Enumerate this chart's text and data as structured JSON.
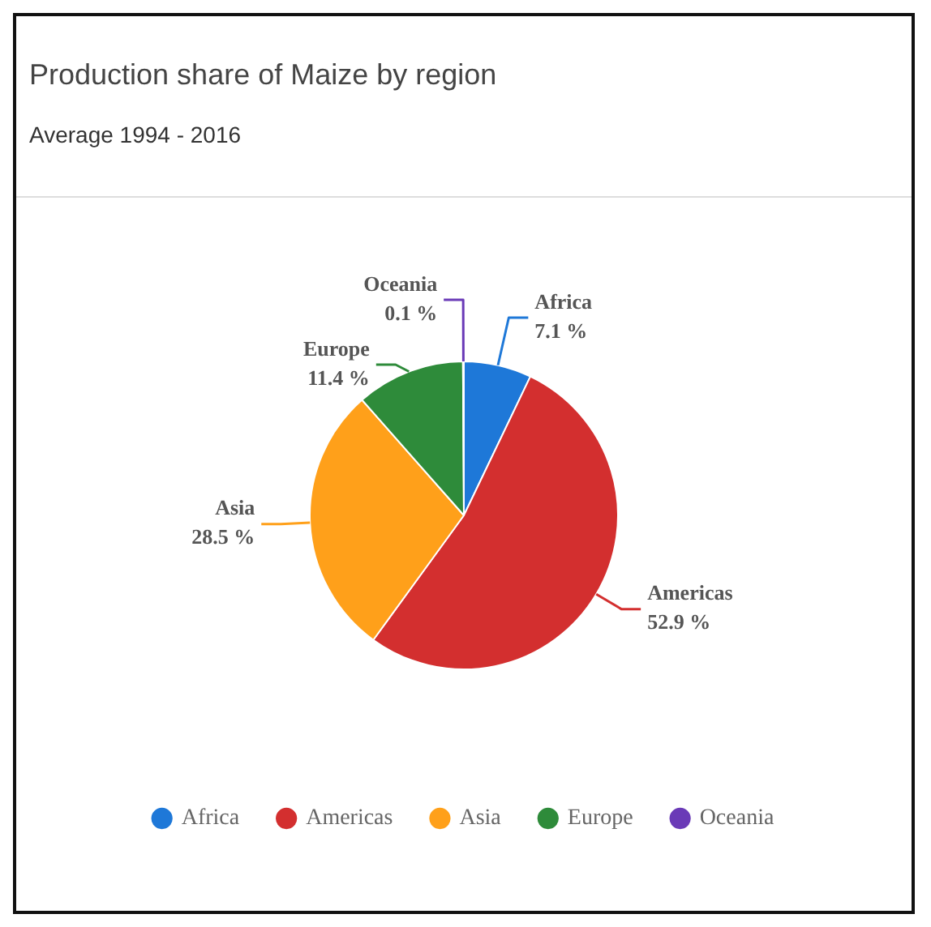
{
  "chart_data": {
    "type": "pie",
    "title": "Production share of Maize by region",
    "subtitle": "Average 1994 - 2016",
    "categories": [
      "Africa",
      "Americas",
      "Asia",
      "Europe",
      "Oceania"
    ],
    "values": [
      7.1,
      52.9,
      28.5,
      11.4,
      0.1
    ],
    "value_labels": [
      "7.1 %",
      "52.9 %",
      "28.5 %",
      "11.4 %",
      "0.1 %"
    ],
    "colors": [
      "#1e78d8",
      "#d32f2f",
      "#ffa01a",
      "#2e8b3a",
      "#6a3ab7"
    ],
    "legend": "bottom"
  }
}
